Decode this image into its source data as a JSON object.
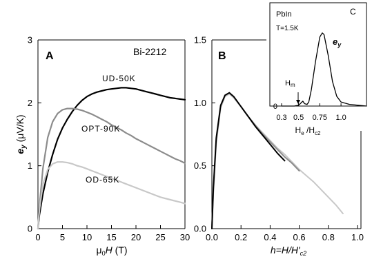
{
  "chart_data": [
    {
      "panel": "A",
      "type": "line",
      "panel_label": "A",
      "sample": "Bi-2212",
      "xlabel": "μ0H (T)",
      "ylabel": "ey (μV/K)",
      "xlim": [
        0,
        30
      ],
      "ylim": [
        0,
        3
      ],
      "xticks": [
        "0",
        "5",
        "10",
        "15",
        "20",
        "25",
        "30"
      ],
      "yticks": [
        "0",
        "1",
        "2",
        "3"
      ],
      "series": [
        {
          "name": "UD-50K",
          "color": "#000000",
          "x": [
            0,
            0.3,
            1,
            2,
            3,
            4,
            5,
            6,
            7,
            8,
            9,
            10,
            11,
            12,
            13,
            14,
            15,
            16,
            17,
            18,
            19,
            20,
            21,
            22,
            23,
            24,
            25,
            26,
            27,
            28,
            29,
            30
          ],
          "y": [
            0,
            0.22,
            0.55,
            0.9,
            1.18,
            1.42,
            1.6,
            1.74,
            1.86,
            1.96,
            2.04,
            2.1,
            2.14,
            2.17,
            2.19,
            2.21,
            2.22,
            2.23,
            2.24,
            2.24,
            2.23,
            2.22,
            2.2,
            2.18,
            2.16,
            2.14,
            2.12,
            2.1,
            2.08,
            2.07,
            2.06,
            2.05
          ]
        },
        {
          "name": "OPT-90K",
          "color": "#8c8c8c",
          "x": [
            0,
            0.3,
            1,
            2,
            3,
            4,
            5,
            6,
            7,
            8,
            9,
            10,
            11,
            12,
            13,
            14,
            15,
            16,
            17,
            18,
            19,
            20,
            21,
            22,
            23,
            24,
            25,
            26,
            27,
            28,
            29,
            30
          ],
          "y": [
            0,
            0.35,
            0.95,
            1.45,
            1.7,
            1.83,
            1.89,
            1.91,
            1.91,
            1.9,
            1.88,
            1.85,
            1.82,
            1.78,
            1.74,
            1.7,
            1.65,
            1.61,
            1.57,
            1.52,
            1.48,
            1.43,
            1.39,
            1.35,
            1.31,
            1.27,
            1.23,
            1.19,
            1.15,
            1.11,
            1.08,
            1.04
          ]
        },
        {
          "name": "OD-65K",
          "color": "#c8c8c8",
          "x": [
            0,
            0.3,
            1,
            2,
            3,
            4,
            5,
            6,
            7,
            8,
            9,
            10,
            11,
            12,
            13,
            14,
            15,
            16,
            17,
            18,
            19,
            20,
            21,
            22,
            23,
            24,
            25,
            26,
            27,
            28,
            29,
            30
          ],
          "y": [
            0,
            0.3,
            0.7,
            0.94,
            1.03,
            1.06,
            1.06,
            1.05,
            1.03,
            1.0,
            0.98,
            0.95,
            0.92,
            0.89,
            0.86,
            0.83,
            0.8,
            0.77,
            0.74,
            0.71,
            0.68,
            0.65,
            0.62,
            0.59,
            0.56,
            0.53,
            0.5,
            0.48,
            0.46,
            0.44,
            0.42,
            0.4
          ]
        }
      ]
    },
    {
      "panel": "B",
      "type": "line",
      "panel_label": "B",
      "xlabel": "h=H/H′c2",
      "ylabel": "",
      "xlim": [
        0,
        1.0
      ],
      "ylim": [
        0,
        1.5
      ],
      "xticks": [
        "0.0",
        "0.2",
        "0.4",
        "0.6",
        "0.8",
        "1.0"
      ],
      "yticks": [
        "0.0",
        "0.5",
        "1.0",
        "1.5"
      ],
      "series": [
        {
          "color": "#c8c8c8",
          "x": [
            0,
            0.01,
            0.03,
            0.06,
            0.09,
            0.12,
            0.15,
            0.2,
            0.25,
            0.3,
            0.35,
            0.4,
            0.45,
            0.5,
            0.55,
            0.6,
            0.65,
            0.7,
            0.75,
            0.8,
            0.85,
            0.9
          ],
          "y": [
            0,
            0.28,
            0.68,
            0.96,
            1.05,
            1.07,
            1.04,
            0.97,
            0.89,
            0.82,
            0.76,
            0.7,
            0.64,
            0.59,
            0.53,
            0.47,
            0.42,
            0.37,
            0.31,
            0.25,
            0.19,
            0.12
          ]
        },
        {
          "color": "#8c8c8c",
          "x": [
            0,
            0.01,
            0.03,
            0.06,
            0.09,
            0.12,
            0.15,
            0.2,
            0.25,
            0.3,
            0.35,
            0.4,
            0.45,
            0.5,
            0.55,
            0.6
          ],
          "y": [
            0,
            0.3,
            0.7,
            0.97,
            1.06,
            1.08,
            1.05,
            0.97,
            0.89,
            0.82,
            0.75,
            0.69,
            0.63,
            0.57,
            0.52,
            0.46
          ]
        },
        {
          "color": "#000000",
          "x": [
            0,
            0.01,
            0.03,
            0.06,
            0.09,
            0.12,
            0.15,
            0.2,
            0.25,
            0.3,
            0.35,
            0.4,
            0.45,
            0.5
          ],
          "y": [
            0,
            0.32,
            0.72,
            0.98,
            1.06,
            1.08,
            1.05,
            0.97,
            0.89,
            0.81,
            0.74,
            0.67,
            0.6,
            0.54
          ]
        }
      ]
    },
    {
      "panel": "C",
      "type": "line",
      "panel_label": "C",
      "sample": "PbIn",
      "temperature": "T=1.5K",
      "series_label": "ey",
      "annotation": "Hm",
      "annotation_x": 0.5,
      "xlabel": "Hₑ /Hc2",
      "xlim": [
        0.3,
        1.3
      ],
      "ylim": [
        0,
        1.0
      ],
      "xticks": [
        "0.3",
        "0.5",
        "0.75",
        "1.0"
      ],
      "yticks": [
        "0"
      ],
      "series": [
        {
          "color": "#000000",
          "x": [
            0.3,
            0.45,
            0.5,
            0.52,
            0.55,
            0.57,
            0.6,
            0.62,
            0.65,
            0.7,
            0.75,
            0.78,
            0.8,
            0.85,
            0.9,
            0.95,
            1.0,
            1.1,
            1.2,
            1.3
          ],
          "y": [
            0,
            0,
            0.01,
            0.03,
            0.06,
            0.03,
            0.02,
            0.05,
            0.2,
            0.55,
            0.85,
            0.9,
            0.88,
            0.62,
            0.3,
            0.12,
            0.05,
            0.02,
            0.01,
            0
          ]
        }
      ]
    }
  ]
}
